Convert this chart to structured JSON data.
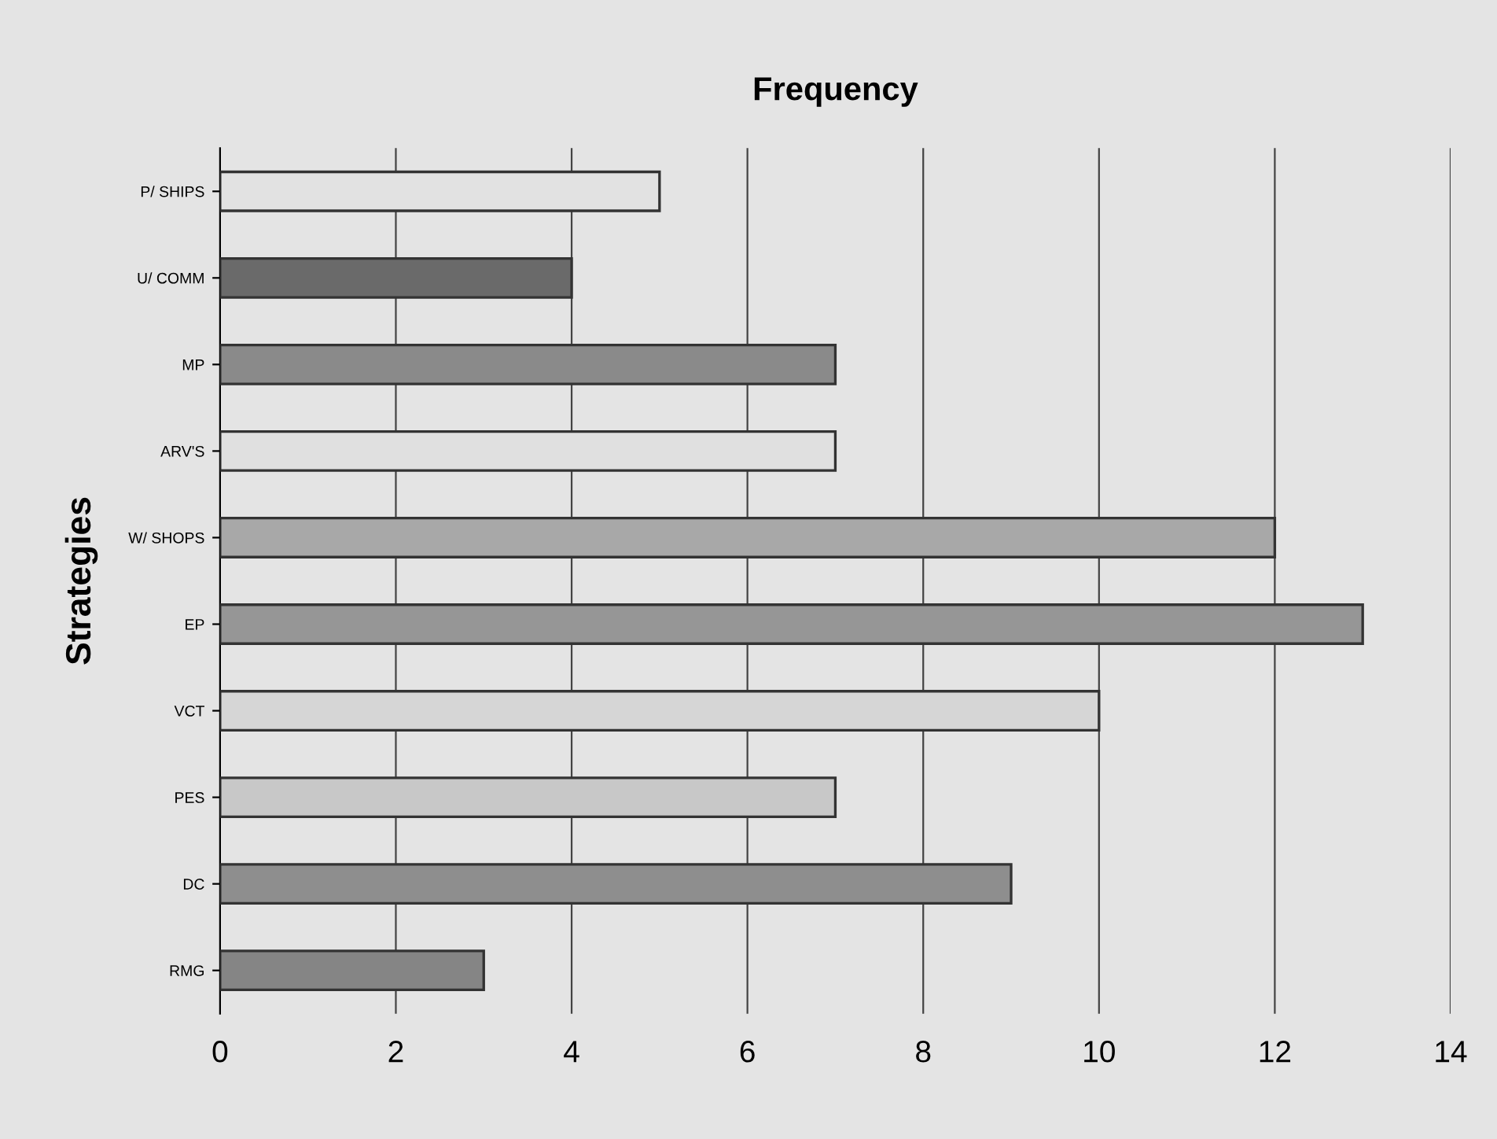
{
  "chart_data": {
    "type": "bar",
    "orientation": "horizontal",
    "title": "Frequency",
    "ylabel": "Strategies",
    "categories": [
      "P/ SHIPS",
      "U/ COMM",
      "MP",
      "ARV'S",
      "W/ SHOPS",
      "EP",
      "VCT",
      "PES",
      "DC",
      "RMG"
    ],
    "values": [
      5,
      4,
      7,
      7,
      12,
      13,
      10,
      7,
      9,
      3
    ],
    "colors": [
      "#e2e2e2",
      "#6a6a6a",
      "#8a8a8a",
      "#e0e0e0",
      "#a8a8a8",
      "#969696",
      "#d6d6d6",
      "#c8c8c8",
      "#8e8e8e",
      "#858585"
    ],
    "xlim": [
      0,
      14
    ],
    "xticks": [
      0,
      2,
      4,
      6,
      8,
      10,
      12,
      14
    ],
    "grid": "x"
  }
}
